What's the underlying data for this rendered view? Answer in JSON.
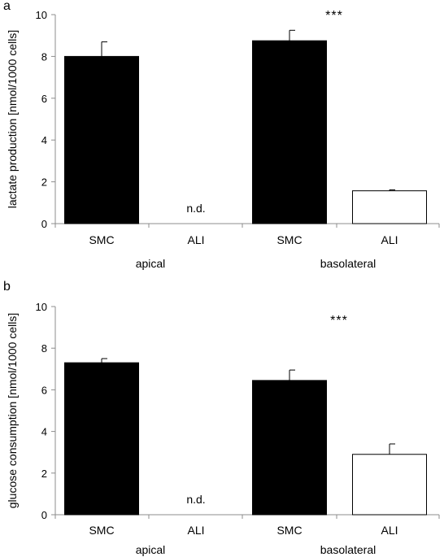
{
  "chart_data": [
    {
      "type": "bar",
      "panel_label": "a",
      "categories": [
        "SMC",
        "ALI",
        "SMC",
        "ALI"
      ],
      "groups": [
        {
          "label": "apical",
          "categories": [
            0,
            1
          ]
        },
        {
          "label": "basolateral",
          "categories": [
            2,
            3
          ]
        }
      ],
      "values": [
        8.0,
        0,
        8.75,
        1.57
      ],
      "errors": [
        0.7,
        0,
        0.5,
        0.05
      ],
      "fills": [
        "#000000",
        "#000000",
        "#000000",
        "#ffffff"
      ],
      "missing_label": "n.d.",
      "missing_index": 1,
      "significance": {
        "label": "***",
        "index": 2
      },
      "ylabel": "lactate production [nmol/1000 cells]",
      "ylim": [
        0,
        10
      ],
      "yticks": [
        0,
        2,
        4,
        6,
        8,
        10
      ],
      "grid": false
    },
    {
      "type": "bar",
      "panel_label": "b",
      "categories": [
        "SMC",
        "ALI",
        "SMC",
        "ALI"
      ],
      "groups": [
        {
          "label": "apical",
          "categories": [
            0,
            1
          ]
        },
        {
          "label": "basolateral",
          "categories": [
            2,
            3
          ]
        }
      ],
      "values": [
        7.3,
        0,
        6.45,
        2.9
      ],
      "errors": [
        0.2,
        0,
        0.5,
        0.5
      ],
      "fills": [
        "#000000",
        "#000000",
        "#000000",
        "#ffffff"
      ],
      "missing_label": "n.d.",
      "missing_index": 1,
      "significance": {
        "label": "***",
        "index": 3
      },
      "ylabel": "glucose  consumption [nmol/1000 cells]",
      "ylim": [
        0,
        10
      ],
      "yticks": [
        0,
        2,
        4,
        6,
        8,
        10
      ],
      "grid": false
    }
  ]
}
